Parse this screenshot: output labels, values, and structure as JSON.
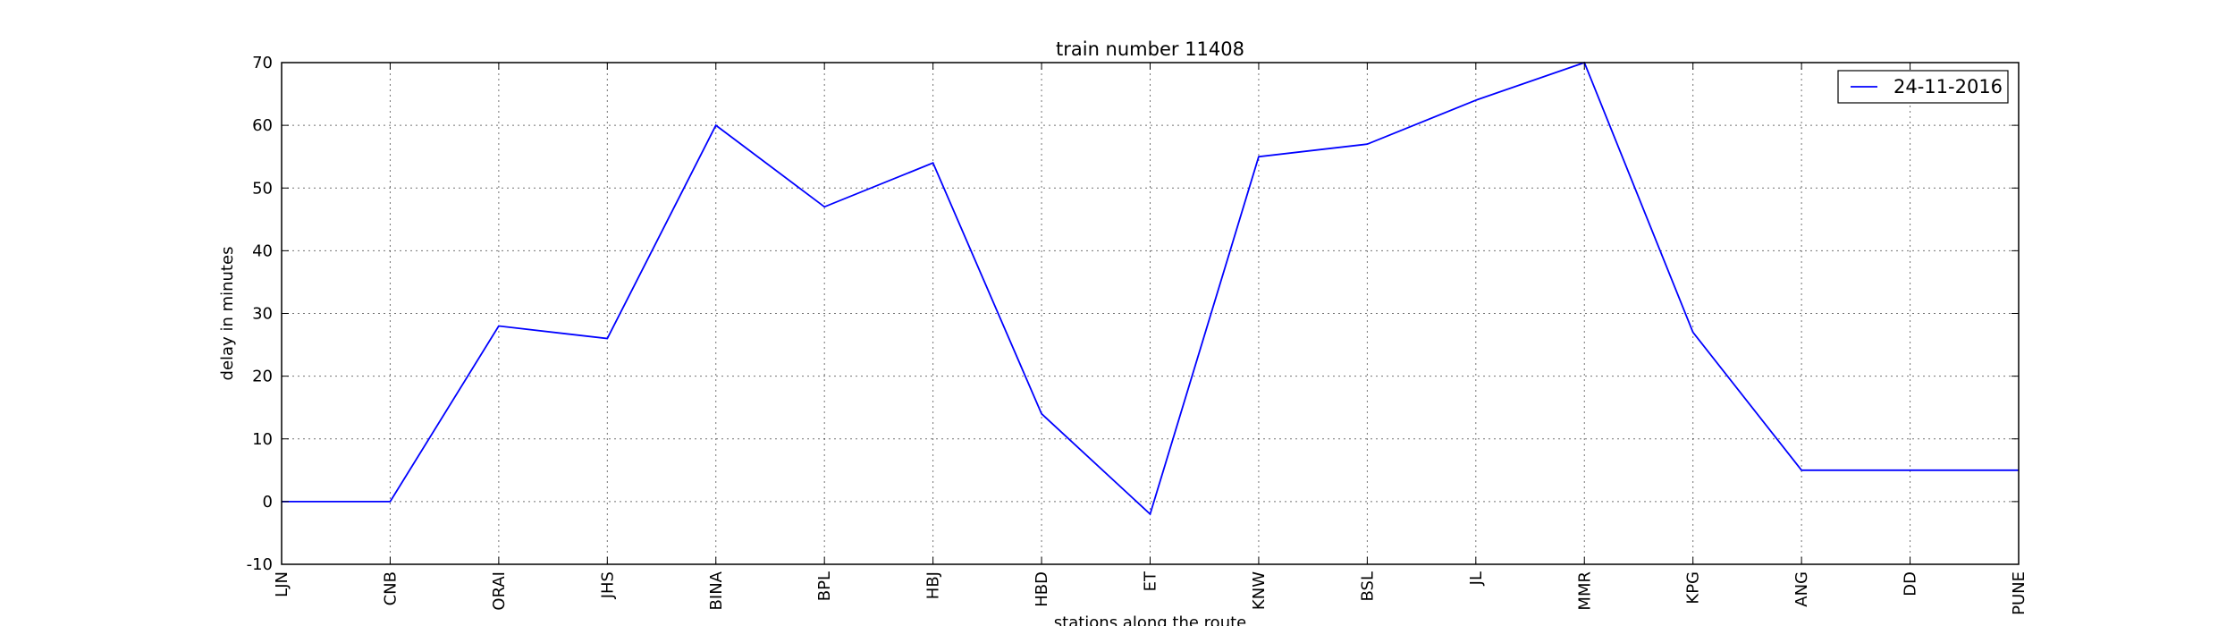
{
  "chart_data": {
    "type": "line",
    "title": "train number 11408",
    "xlabel": "stations along the route",
    "ylabel": "delay in minutes",
    "categories": [
      "LJN",
      "CNB",
      "ORAI",
      "JHS",
      "BINA",
      "BPL",
      "HBJ",
      "HBD",
      "ET",
      "KNW",
      "BSL",
      "JL",
      "MMR",
      "KPG",
      "ANG",
      "DD",
      "PUNE"
    ],
    "series": [
      {
        "name": "24-11-2016",
        "values": [
          0,
          0,
          28,
          26,
          60,
          47,
          54,
          14,
          -2,
          55,
          57,
          64,
          70,
          27,
          5,
          5,
          5
        ],
        "color": "#0000ff"
      }
    ],
    "ylim": [
      -10,
      70
    ],
    "yticks": [
      -10,
      0,
      10,
      20,
      30,
      40,
      50,
      60,
      70
    ],
    "grid": true,
    "legend_position": "top-right"
  }
}
